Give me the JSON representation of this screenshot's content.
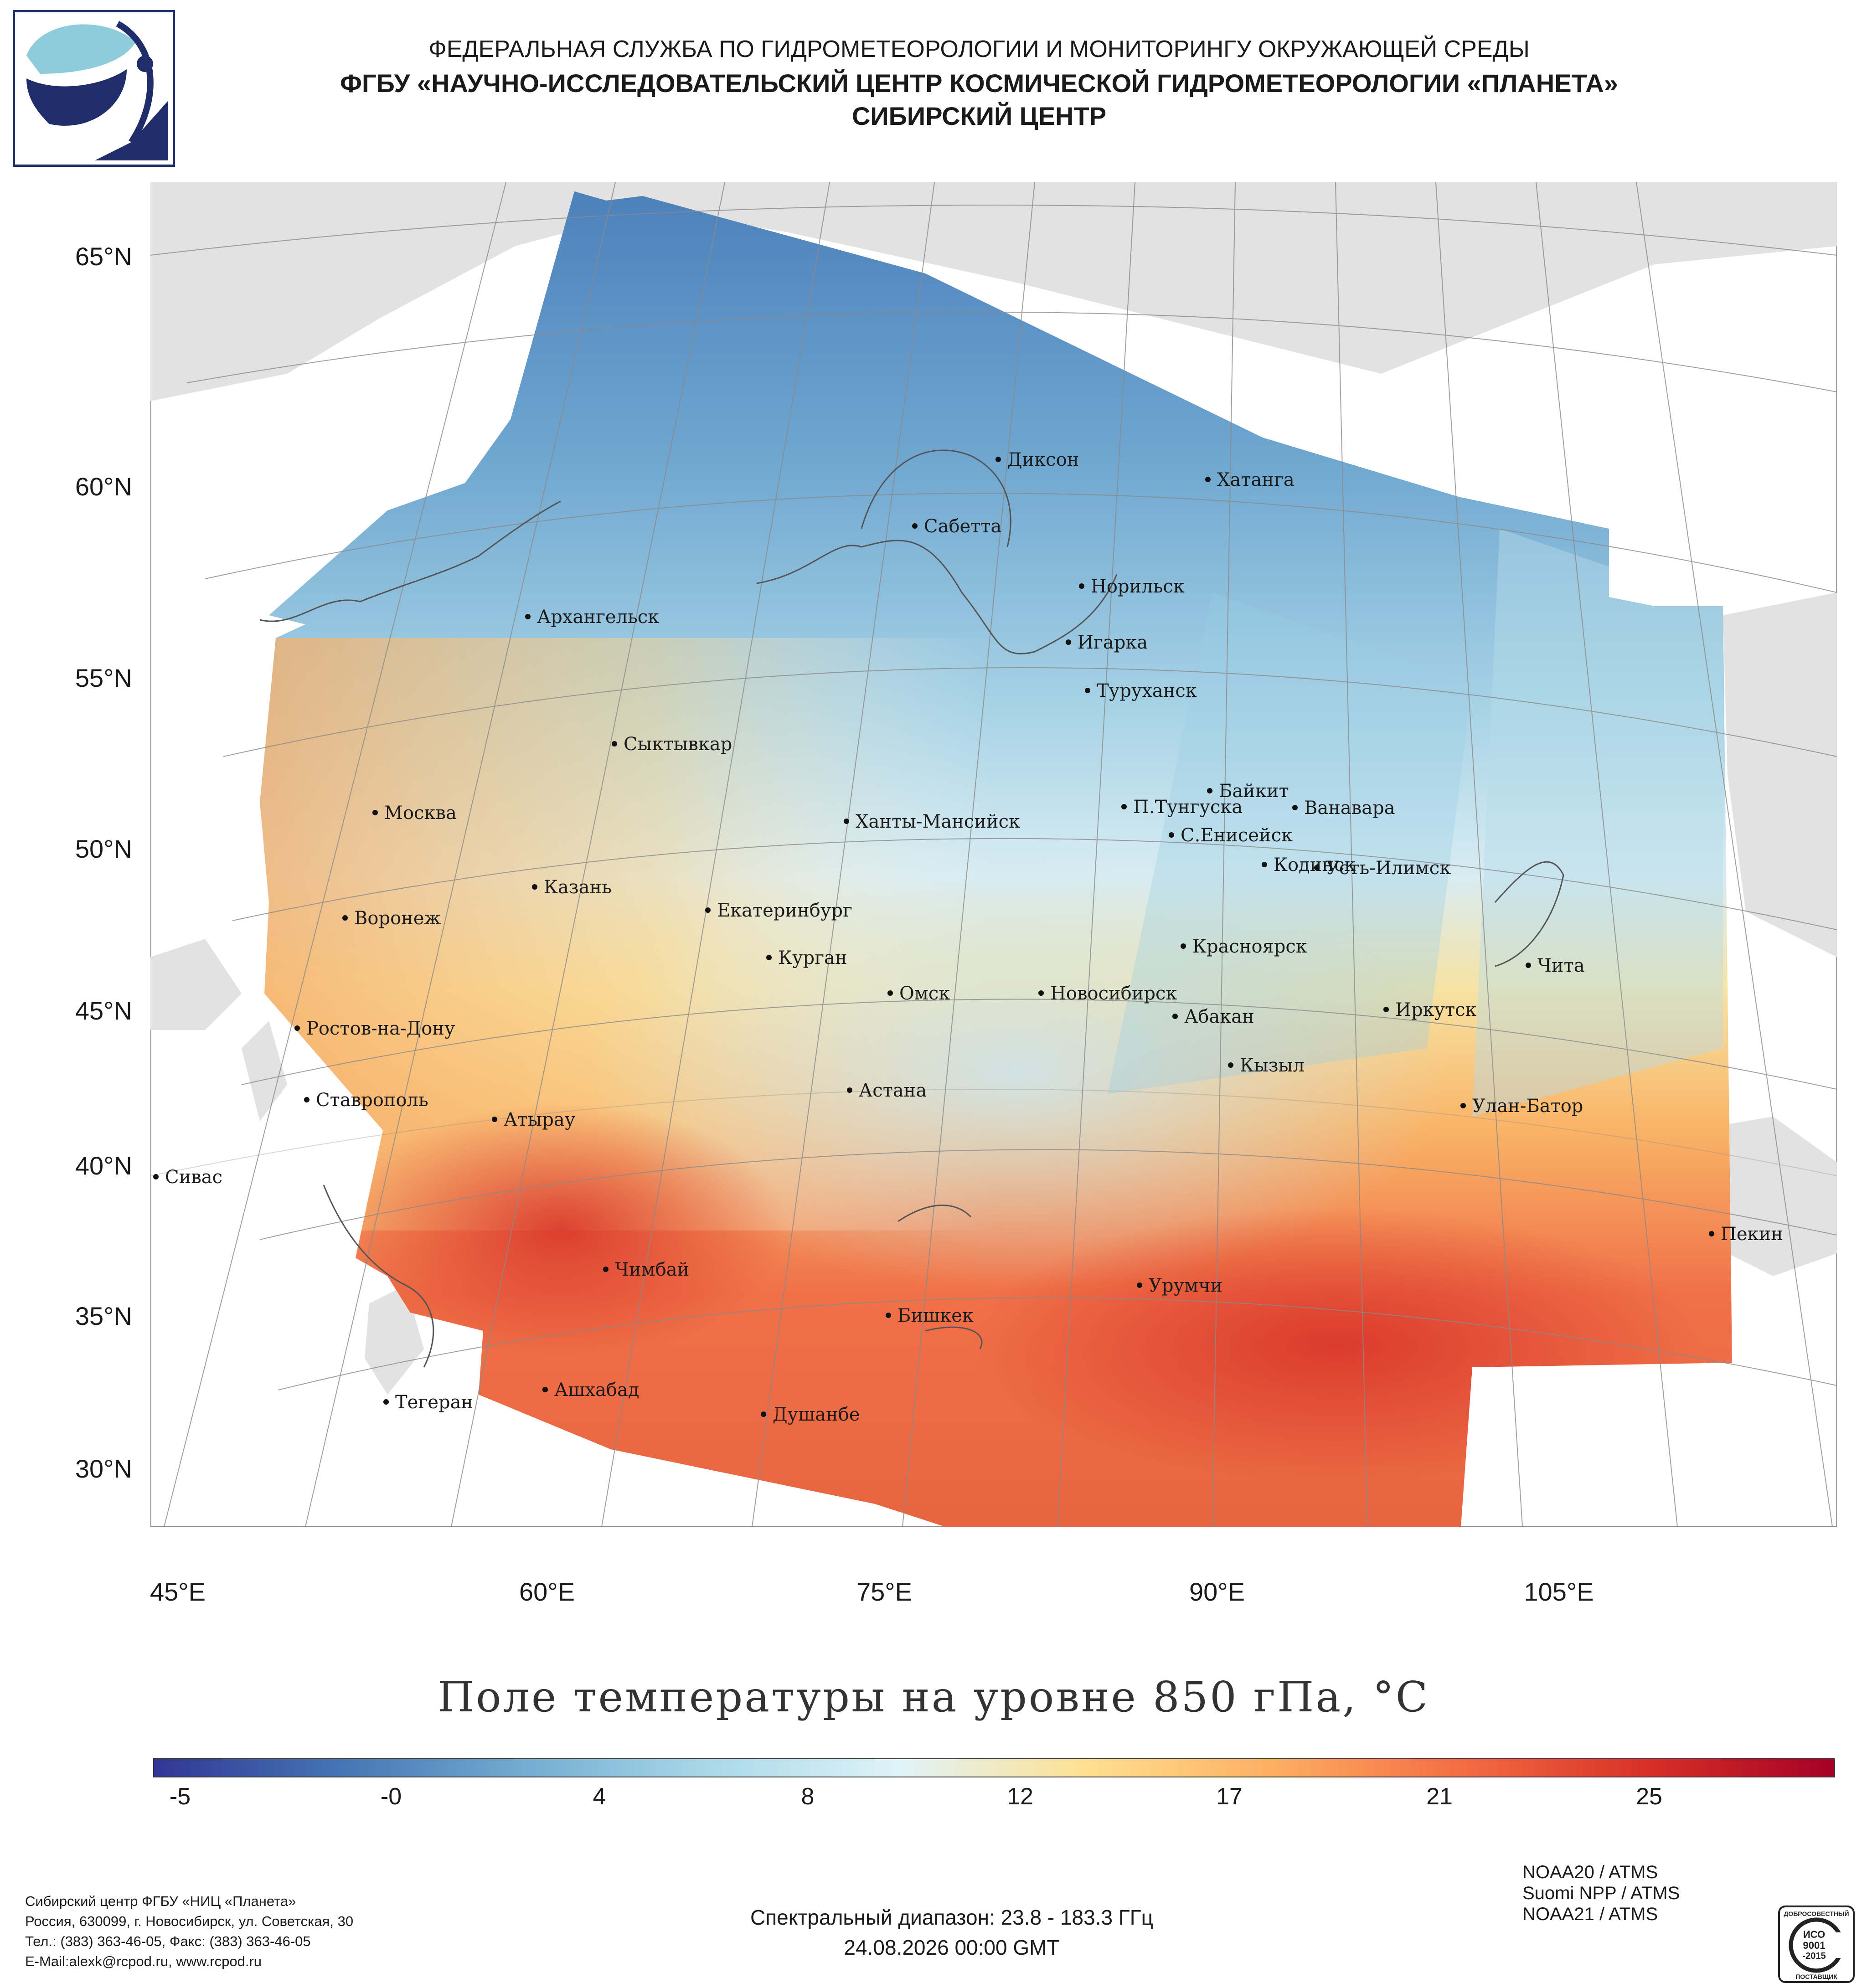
{
  "header": {
    "line1": "ФЕДЕРАЛЬНАЯ СЛУЖБА ПО ГИДРОМЕТЕОРОЛОГИИ И МОНИТОРИНГУ ОКРУЖАЮЩЕЙ СРЕДЫ",
    "line2": "ФГБУ «НАУЧНО-ИССЛЕДОВАТЕЛЬСКИЙ ЦЕНТР КОСМИЧЕСКОЙ ГИДРОМЕТЕОРОЛОГИИ «ПЛАНЕТА»",
    "line3": "СИБИРСКИЙ ЦЕНТР"
  },
  "logo": {
    "icon": "planeta-logo-icon",
    "colors": [
      "#1f2d6b",
      "#8ecbdb"
    ]
  },
  "map": {
    "lat_labels": [
      "65°N",
      "60°N",
      "55°N",
      "50°N",
      "45°N",
      "40°N",
      "35°N",
      "30°N"
    ],
    "lon_labels": [
      "45°E",
      "60°E",
      "75°E",
      "90°E",
      "105°E"
    ],
    "cities": [
      "Диксон",
      "Хатанга",
      "Сабетта",
      "Норильск",
      "Архангельск",
      "Игарка",
      "Туруханск",
      "Сыктывкар",
      "Байкит",
      "Москва",
      "П.Тунгуска",
      "Ванавара",
      "Ханты-Мансийск",
      "С.Енисейск",
      "Кодинск",
      "Усть-Илимск",
      "Казань",
      "Екатеринбург",
      "Воронеж",
      "Красноярск",
      "Курган",
      "Чита",
      "Омск",
      "Новосибирск",
      "Иркутск",
      "Абакан",
      "Ростов-на-Дону",
      "Кызыл",
      "Астана",
      "Ставрополь",
      "Улан-Батор",
      "Атырау",
      "Сивас",
      "Пекин",
      "Чимбай",
      "Урумчи",
      "Бишкек",
      "Ашхабад",
      "Тегеран",
      "Душанбе"
    ]
  },
  "title": "Поле температуры на уровне 850 гПа, °С",
  "colorbar": {
    "ticks": [
      "-5",
      "-0",
      "4",
      "8",
      "12",
      "17",
      "21",
      "25"
    ],
    "colors": [
      "#313695",
      "#4575b4",
      "#74add1",
      "#abd9e9",
      "#e0f3f8",
      "#fee090",
      "#fdae61",
      "#f46d43",
      "#d73027",
      "#a50026"
    ]
  },
  "sensors": [
    "NOAA20 / ATMS",
    "Suomi NPP / ATMS",
    "NOAA21 / ATMS"
  ],
  "address": [
    "Сибирский центр ФГБУ «НИЦ «Планета»",
    "Россия, 630099, г. Новосибирск, ул. Советская, 30",
    "Тел.: (383) 363-46-05, Факс: (383) 363-46-05",
    "E-Mail:alexk@rcpod.ru, www.rcpod.ru"
  ],
  "spectral": "Спектральный диапазон: 23.8 - 183.3 ГГц",
  "datetime": "24.08.2026 00:00 GMT",
  "iso_badge": {
    "top": "ДОБРОСОВЕСТНЫЙ",
    "center1": "ИСО",
    "center2": "9001",
    "center3": "-2015",
    "bottom": "ПОСТАВЩИК"
  }
}
